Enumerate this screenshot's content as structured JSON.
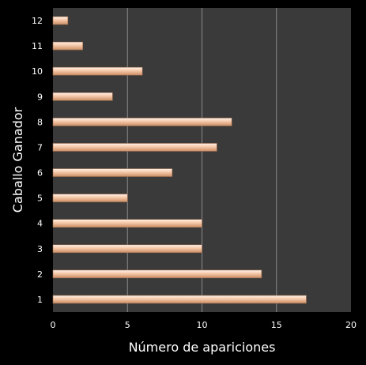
{
  "chart_data": {
    "type": "bar",
    "orientation": "horizontal",
    "title": "",
    "xlabel": "Número de apariciones",
    "ylabel": "Caballo Ganador",
    "categories": [
      "1",
      "2",
      "3",
      "4",
      "5",
      "6",
      "7",
      "8",
      "9",
      "10",
      "11",
      "12"
    ],
    "values": [
      17,
      14,
      10,
      10,
      5,
      8,
      11,
      12,
      4,
      6,
      2,
      1
    ],
    "xlim": [
      0,
      20
    ],
    "xticks": [
      "0",
      "5",
      "10",
      "15",
      "20"
    ],
    "grid": "vertical",
    "legend": "none",
    "colors": {
      "background": "#000000",
      "plot_area": "#3a3a3a",
      "gridline": "#8a8a8a",
      "bar_light": "#fff3ea",
      "bar_mid": "#f5c6a6",
      "bar_dark": "#c98e66",
      "bar_edge": "#9a6a4a",
      "text": "#ffffff"
    }
  }
}
